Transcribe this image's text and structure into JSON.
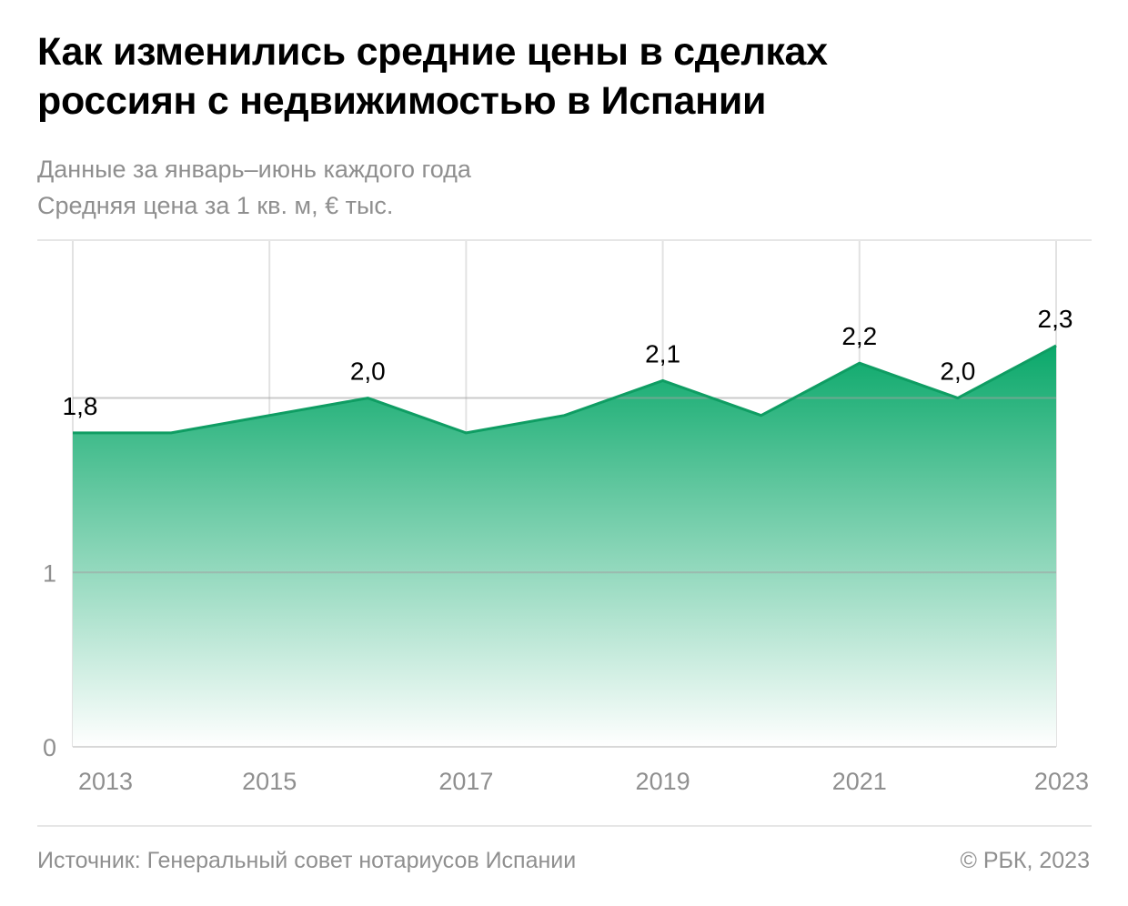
{
  "header": {
    "title_line1": "Как изменились средние цены в сделках",
    "title_line2": "россиян с недвижимостью в Испании",
    "subtitle_line1": "Данные за январь–июнь каждого года",
    "subtitle_line2": "Средняя цена за 1 кв. м, € тыс."
  },
  "footer": {
    "source": "Источник: Генеральный совет нотариусов Испании",
    "copyright": "© РБК, 2023"
  },
  "chart_data": {
    "type": "area",
    "x": [
      2013,
      2014,
      2015,
      2016,
      2017,
      2018,
      2019,
      2020,
      2021,
      2022,
      2023
    ],
    "values": [
      1.8,
      1.8,
      1.9,
      2.0,
      1.8,
      1.9,
      2.1,
      1.9,
      2.2,
      2.0,
      2.3
    ],
    "data_labels": [
      {
        "x": 2013,
        "text": "1,8"
      },
      {
        "x": 2016,
        "text": "2,0"
      },
      {
        "x": 2019,
        "text": "2,1"
      },
      {
        "x": 2021,
        "text": "2,2"
      },
      {
        "x": 2022,
        "text": "2,0"
      },
      {
        "x": 2023,
        "text": "2,3"
      }
    ],
    "x_ticks": [
      {
        "value": 2013,
        "label": "2013"
      },
      {
        "value": 2015,
        "label": "2015"
      },
      {
        "value": 2017,
        "label": "2017"
      },
      {
        "value": 2019,
        "label": "2019"
      },
      {
        "value": 2021,
        "label": "2021"
      },
      {
        "value": 2023,
        "label": "2023"
      }
    ],
    "y_ticks": [
      {
        "value": 0,
        "label": "0"
      },
      {
        "value": 1,
        "label": "1"
      }
    ],
    "gridlines_y": [
      0,
      1,
      2
    ],
    "ylim": [
      0,
      2.9
    ],
    "grid": true,
    "colors": {
      "line": "#0f9d63",
      "fill_top": "#0aa86a",
      "fill_bottom": "#ffffff",
      "grid": "#e2e2e2",
      "tick_text": "#8f8f8f",
      "label_text": "#000000"
    }
  }
}
